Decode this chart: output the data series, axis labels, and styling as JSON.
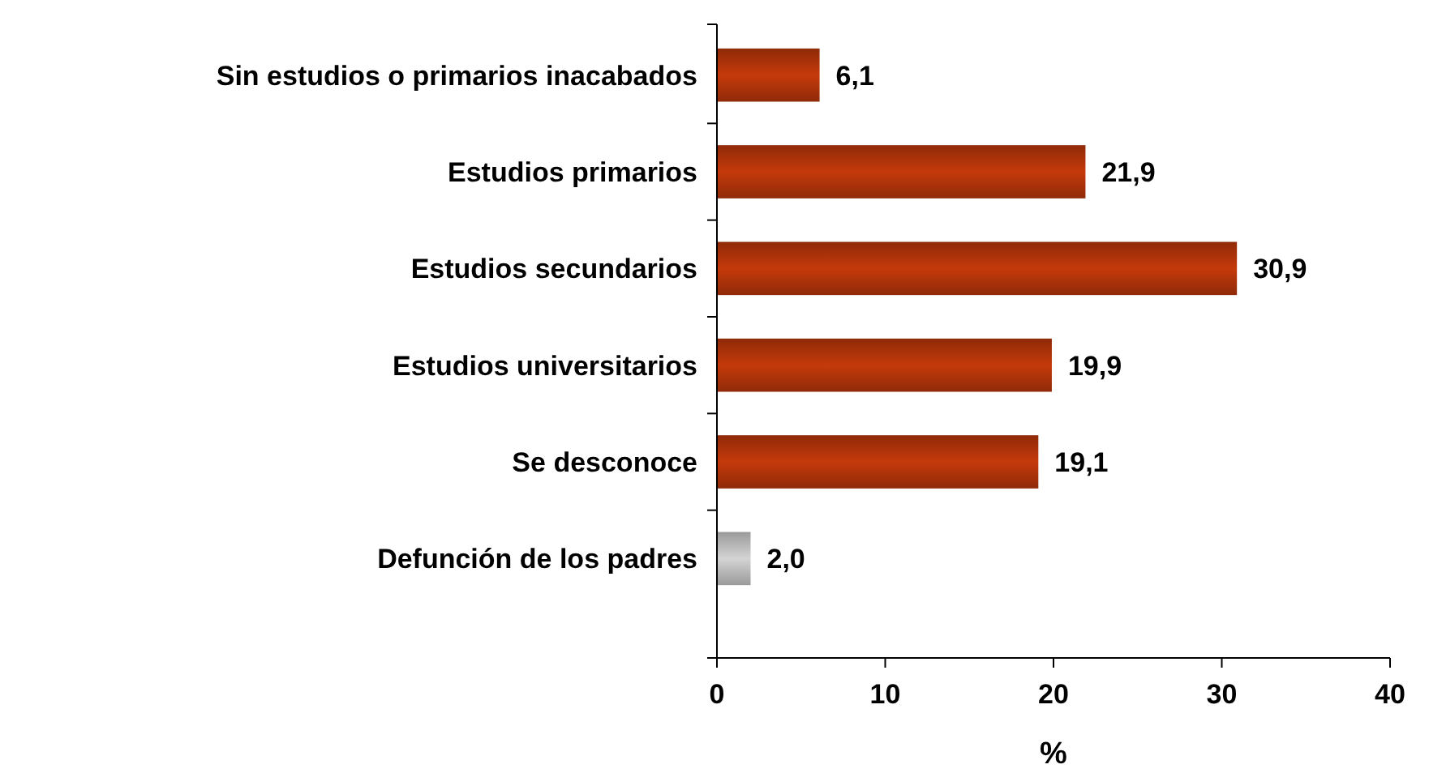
{
  "chart_data": {
    "type": "bar",
    "orientation": "horizontal",
    "xlabel": "%",
    "categories": [
      "Sin estudios o primarios inacabados",
      "Estudios primarios",
      "Estudios secundarios",
      "Estudios universitarios",
      "Se desconoce",
      "Defunción de los padres"
    ],
    "values": [
      6.1,
      21.9,
      30.9,
      19.9,
      19.1,
      2.0
    ],
    "colors": [
      "#8f2a08",
      "#8f2a08",
      "#8f2a08",
      "#8f2a08",
      "#8f2a08",
      "#9a9a9a"
    ],
    "value_labels": [
      "6,1",
      "21,9",
      "30,9",
      "19,9",
      "19,1",
      "2,0"
    ],
    "xlim": [
      0,
      40
    ],
    "xticks": [
      0,
      10,
      20,
      30,
      40
    ],
    "grid": false
  }
}
